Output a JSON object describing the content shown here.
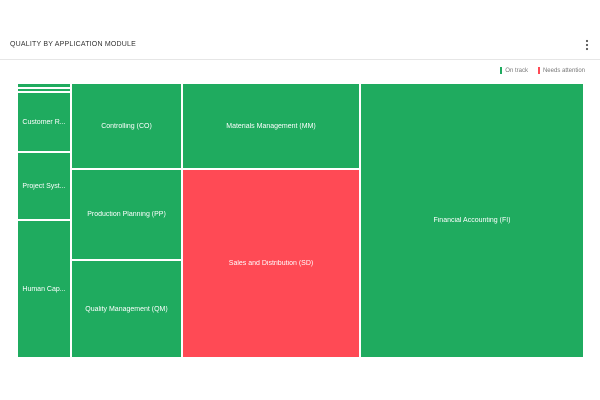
{
  "header": {
    "title": "QUALITY BY APPLICATION MODULE",
    "menu_icon": "more-vertical-icon"
  },
  "legend": [
    {
      "label": "On track",
      "color": "#1fab5f"
    },
    {
      "label": "Needs attention",
      "color": "#ff4a55"
    }
  ],
  "colors": {
    "on_track": "#1fab5f",
    "needs_attention": "#ff4a55"
  },
  "tiles": [
    {
      "id": "small-1",
      "label": "",
      "status": "on_track"
    },
    {
      "id": "small-2",
      "label": "",
      "status": "on_track"
    },
    {
      "id": "customer-relationship",
      "label": "Customer R...",
      "status": "on_track"
    },
    {
      "id": "project-system",
      "label": "Project Syst...",
      "status": "on_track"
    },
    {
      "id": "human-capital",
      "label": "Human Cap...",
      "status": "on_track"
    },
    {
      "id": "controlling",
      "label": "Controlling (CO)",
      "status": "on_track"
    },
    {
      "id": "production-planning",
      "label": "Production Planning (PP)",
      "status": "on_track"
    },
    {
      "id": "quality-management",
      "label": "Quality Management (QM)",
      "status": "on_track"
    },
    {
      "id": "materials-management",
      "label": "Materials Management (MM)",
      "status": "on_track"
    },
    {
      "id": "sales-distribution",
      "label": "Sales and Distribution (SD)",
      "status": "needs_attention"
    },
    {
      "id": "financial-accounting",
      "label": "Financial Accounting (FI)",
      "status": "on_track"
    }
  ]
}
